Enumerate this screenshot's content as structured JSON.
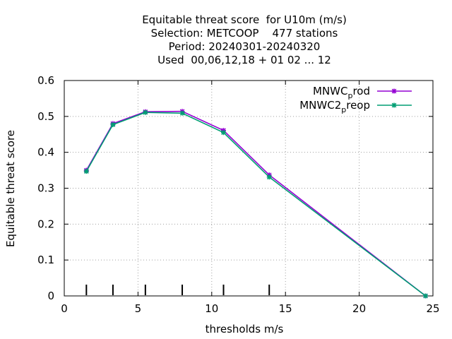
{
  "chart_data": {
    "type": "line",
    "title_lines": [
      "Equitable threat score  for U10m (m/s)",
      "Selection: METCOOP    477 stations",
      "Period: 20240301-20240320",
      "Used  00,06,12,18 + 01 02 ... 12"
    ],
    "xlabel": "thresholds m/s",
    "ylabel": "Equitable threat score",
    "xlim": [
      0,
      25
    ],
    "ylim": [
      0,
      0.6
    ],
    "xticks": [
      0,
      5,
      10,
      15,
      20,
      25
    ],
    "yticks": [
      0,
      0.1,
      0.2,
      0.3,
      0.4,
      0.5,
      0.6
    ],
    "grid": true,
    "legend_position": "top-right",
    "threshold_marks": [
      1.5,
      3.3,
      5.5,
      8,
      10.8,
      13.9
    ],
    "series": [
      {
        "name": "MNWC_prod",
        "legend_main": "MNWC",
        "legend_sub": "p",
        "legend_rest": "rod",
        "color": "#9400d3",
        "x": [
          1.5,
          3.3,
          5.5,
          8,
          10.8,
          13.9,
          24.5
        ],
        "y": [
          0.35,
          0.48,
          0.513,
          0.514,
          0.461,
          0.337,
          0.0
        ]
      },
      {
        "name": "MNWC2_preop",
        "legend_main": "MNWC2",
        "legend_sub": "p",
        "legend_rest": "reop",
        "color": "#009e73",
        "x": [
          1.5,
          3.3,
          5.5,
          8,
          10.8,
          13.9,
          24.5
        ],
        "y": [
          0.347,
          0.477,
          0.511,
          0.509,
          0.455,
          0.331,
          0.0
        ]
      }
    ]
  }
}
